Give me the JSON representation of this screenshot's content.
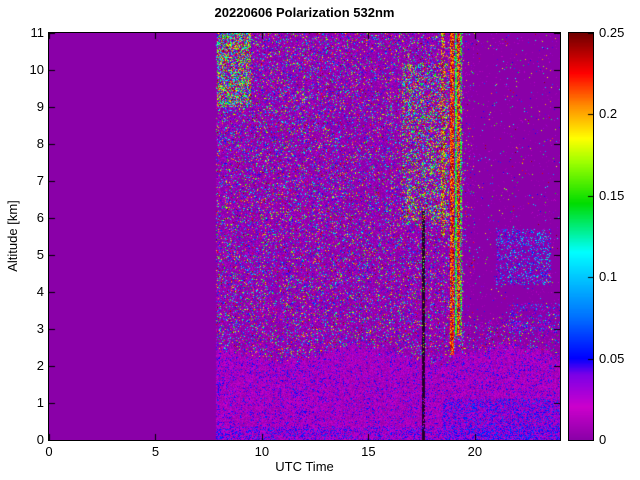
{
  "chart_data": {
    "type": "heatmap",
    "title": "20220606 Polarization 532nm",
    "xlabel": "UTC Time",
    "ylabel": "Altitude [km]",
    "xlim": [
      0,
      24
    ],
    "ylim": [
      0,
      11
    ],
    "x_ticks": [
      0,
      5,
      10,
      15,
      20
    ],
    "y_ticks": [
      0,
      1,
      2,
      3,
      4,
      5,
      6,
      7,
      8,
      9,
      10,
      11
    ],
    "colorbar": {
      "min": 0,
      "max": 0.25,
      "ticks": [
        0,
        0.05,
        0.1,
        0.15,
        0.2,
        0.25
      ],
      "tick_labels": [
        "0",
        "0.05",
        "0.1",
        "0.15",
        "0.2",
        "0.25"
      ]
    },
    "render": {
      "plot_background": "#8a00a8",
      "data_start_utc": 7.85,
      "colormap_stops": [
        {
          "t": 0.0,
          "color": "#8a00a8"
        },
        {
          "t": 0.08,
          "color": "#cc00cc"
        },
        {
          "t": 0.16,
          "color": "#7a00e8"
        },
        {
          "t": 0.2,
          "color": "#0000ff"
        },
        {
          "t": 0.3,
          "color": "#0070ff"
        },
        {
          "t": 0.4,
          "color": "#00c8ff"
        },
        {
          "t": 0.46,
          "color": "#00ffff"
        },
        {
          "t": 0.58,
          "color": "#00dc00"
        },
        {
          "t": 0.68,
          "color": "#9cff00"
        },
        {
          "t": 0.74,
          "color": "#ffff00"
        },
        {
          "t": 0.82,
          "color": "#ff8c00"
        },
        {
          "t": 0.9,
          "color": "#ff0000"
        },
        {
          "t": 1.0,
          "color": "#6e0000"
        }
      ],
      "boundary_layer": {
        "base": 2.35,
        "amp": 0.2
      },
      "dark_column": {
        "t0": 17.52,
        "t1": 17.68,
        "alt_max": 6.2,
        "color": "#22002a"
      },
      "stripes": [
        {
          "t0": 18.42,
          "t1": 18.6,
          "alt_min": 5.5,
          "p": 0.5,
          "v_lo": 0.14,
          "v_hi": 0.25
        },
        {
          "t0": 18.82,
          "t1": 19.03,
          "alt_min": 2.3,
          "p": 0.85,
          "v_lo": 0.19,
          "v_hi": 0.25
        },
        {
          "t0": 19.06,
          "t1": 19.14,
          "alt_min": 2.8,
          "p": 0.8,
          "v_lo": 0.12,
          "v_hi": 0.17
        },
        {
          "t0": 19.17,
          "t1": 19.3,
          "alt_min": 2.8,
          "p": 0.75,
          "v_lo": 0.19,
          "v_hi": 0.25
        },
        {
          "t0": 19.32,
          "t1": 19.42,
          "alt_min": 2.8,
          "p": 0.6,
          "v_lo": 0.12,
          "v_hi": 0.18
        }
      ],
      "patches": [
        {
          "t0": 7.9,
          "t1": 9.5,
          "a0": 9.0,
          "a1": 11.0,
          "p": 0.4,
          "v_lo": 0.1,
          "v_hi": 0.25
        },
        {
          "t0": 16.6,
          "t1": 18.8,
          "a0": 5.8,
          "a1": 10.2,
          "p": 0.22,
          "v_lo": 0.1,
          "v_hi": 0.25
        },
        {
          "t0": 21.0,
          "t1": 23.6,
          "a0": 4.2,
          "a1": 5.7,
          "p": 0.3,
          "v_lo": 0.02,
          "v_hi": 0.13
        },
        {
          "t0": 21.6,
          "t1": 24.0,
          "a0": 2.9,
          "a1": 3.7,
          "p": 0.16,
          "v_lo": 0.02,
          "v_hi": 0.1
        }
      ],
      "speckle": {
        "main_p": 0.55,
        "quiet_p": 0.04,
        "quiet_start_utc": 19.45,
        "taper_end_utc": 20.0,
        "taper_p": 0.12,
        "exp": 4.5
      }
    }
  }
}
